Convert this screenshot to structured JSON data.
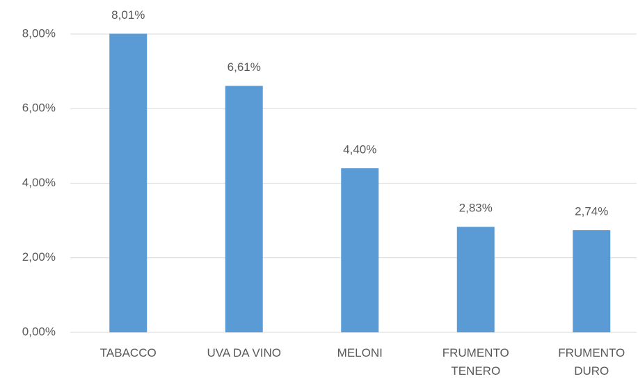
{
  "chart_data": {
    "type": "bar",
    "categories": [
      "TABACCO",
      "UVA DA VINO",
      "MELONI",
      "FRUMENTO TENERO",
      "FRUMENTO DURO"
    ],
    "values": [
      8.01,
      6.61,
      4.4,
      2.83,
      2.74
    ],
    "value_labels": [
      "8,01%",
      "6,61%",
      "4,40%",
      "2,83%",
      "2,74%"
    ],
    "color": "#5b9bd5",
    "ylim": [
      0,
      8
    ],
    "yticks": [
      {
        "value": 0,
        "label": "0,00%"
      },
      {
        "value": 2,
        "label": "2,00%"
      },
      {
        "value": 4,
        "label": "4,00%"
      },
      {
        "value": 6,
        "label": "6,00%"
      },
      {
        "value": 8,
        "label": "8,00%"
      }
    ],
    "grid": true
  }
}
